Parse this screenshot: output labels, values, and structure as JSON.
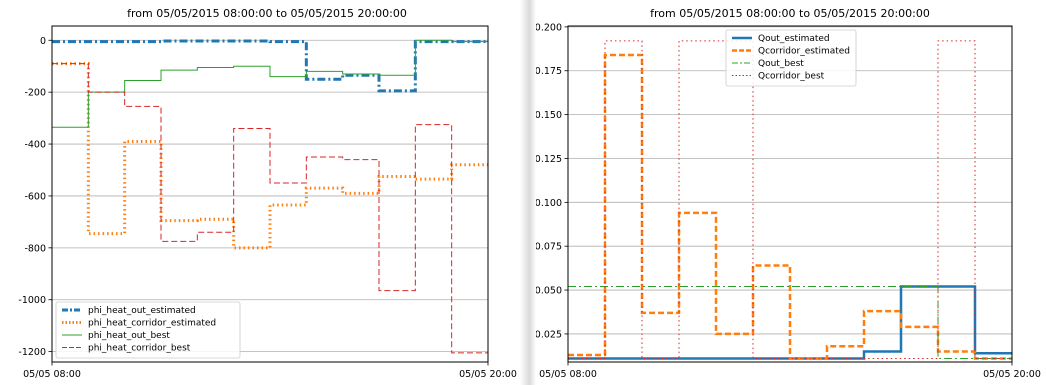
{
  "chart_data": [
    {
      "type": "line",
      "step": true,
      "title": "from 05/05/2015 08:00:00 to 05/05/2015 20:00:00",
      "xlabel": "",
      "ylabel": "",
      "xlim": [
        0,
        12
      ],
      "ylim": [
        -1240,
        55
      ],
      "grid": "y",
      "legend": "bottom-left",
      "xtick_labels": [
        {
          "x": 0,
          "label": "05/05 08:00"
        },
        {
          "x": 12,
          "label": "05/05 20:00"
        }
      ],
      "yticks": [
        0,
        -200,
        -400,
        -600,
        -800,
        -1000,
        -1200
      ],
      "series": [
        {
          "name": "phi_heat_out_estimated",
          "color": "#1f77b4",
          "style": "dashdot",
          "width": 3,
          "x": [
            0,
            1,
            2,
            3,
            4,
            5,
            6,
            7,
            8,
            9,
            10,
            11,
            12
          ],
          "y": [
            -5,
            -5,
            -5,
            -3,
            -3,
            -3,
            -5,
            -150,
            -135,
            -195,
            -5,
            -5,
            -5
          ]
        },
        {
          "name": "phi_heat_corridor_estimated",
          "color": "#ff7f0e",
          "style": "dotted",
          "width": 3,
          "x": [
            0,
            1,
            2,
            3,
            4,
            5,
            6,
            7,
            8,
            9,
            10,
            11,
            12
          ],
          "y": [
            -90,
            -745,
            -390,
            -695,
            -690,
            -800,
            -635,
            -570,
            -590,
            -525,
            -535,
            -480,
            -480
          ]
        },
        {
          "name": "phi_heat_out_best",
          "color": "#2ca02c",
          "style": "solid",
          "width": 1,
          "x": [
            0,
            1,
            2,
            3,
            4,
            5,
            6,
            7,
            8,
            9,
            10,
            11,
            12
          ],
          "y": [
            -335,
            -200,
            -155,
            -115,
            -105,
            -100,
            -140,
            -120,
            -130,
            -135,
            0,
            -5,
            -5
          ]
        },
        {
          "name": "phi_heat_corridor_best",
          "color": "#d62728",
          "style": "dashed",
          "width": 1,
          "x": [
            0,
            1,
            2,
            3,
            4,
            5,
            6,
            7,
            8,
            9,
            10,
            11,
            12
          ],
          "y": [
            -90,
            -200,
            -255,
            -775,
            -740,
            -340,
            -550,
            -450,
            -460,
            -965,
            -325,
            -1205,
            -1205
          ]
        }
      ]
    },
    {
      "type": "line",
      "step": true,
      "title": "from 05/05/2015 08:00:00 to 05/05/2015 20:00:00",
      "xlabel": "",
      "ylabel": "",
      "xlim": [
        0,
        12
      ],
      "ylim": [
        0.009,
        0.2005
      ],
      "grid": "y",
      "legend": "top-center",
      "xtick_labels": [
        {
          "x": 0,
          "label": "05/05 08:00"
        },
        {
          "x": 12,
          "label": "05/05 20:00"
        }
      ],
      "yticks": [
        0.025,
        0.05,
        0.075,
        0.1,
        0.125,
        0.15,
        0.175,
        0.2
      ],
      "series": [
        {
          "name": "Qout_estimated",
          "color": "#1f77b4",
          "style": "solid",
          "width": 2.5,
          "x": [
            0,
            1,
            2,
            3,
            4,
            5,
            6,
            7,
            8,
            9,
            10,
            11,
            12
          ],
          "y": [
            0.011,
            0.011,
            0.011,
            0.011,
            0.011,
            0.011,
            0.011,
            0.011,
            0.015,
            0.052,
            0.052,
            0.014,
            0.014
          ]
        },
        {
          "name": "Qcorridor_estimated",
          "color": "#ff7f0e",
          "style": "dashed",
          "width": 2.5,
          "x": [
            0,
            1,
            2,
            3,
            4,
            5,
            6,
            7,
            8,
            9,
            10,
            11,
            12
          ],
          "y": [
            0.013,
            0.184,
            0.037,
            0.094,
            0.025,
            0.064,
            0.011,
            0.018,
            0.038,
            0.029,
            0.015,
            0.011,
            0.011
          ]
        },
        {
          "name": "Qout_best",
          "color": "#2ca02c",
          "style": "dashdot",
          "width": 1,
          "x": [
            0,
            1,
            2,
            3,
            4,
            5,
            6,
            7,
            8,
            9,
            10,
            11,
            12
          ],
          "y": [
            0.052,
            0.052,
            0.052,
            0.052,
            0.052,
            0.052,
            0.052,
            0.052,
            0.052,
            0.052,
            0.011,
            0.011,
            0.011
          ]
        },
        {
          "name": "Qcorridor_best",
          "color": "#d62728",
          "style": "dotted",
          "width": 1,
          "x": [
            0,
            1,
            2,
            3,
            4,
            5,
            6,
            7,
            8,
            9,
            10,
            11,
            12
          ],
          "y": [
            0.011,
            0.192,
            0.011,
            0.192,
            0.192,
            0.011,
            0.011,
            0.011,
            0.011,
            0.011,
            0.192,
            0.011,
            0.192
          ]
        }
      ]
    }
  ]
}
